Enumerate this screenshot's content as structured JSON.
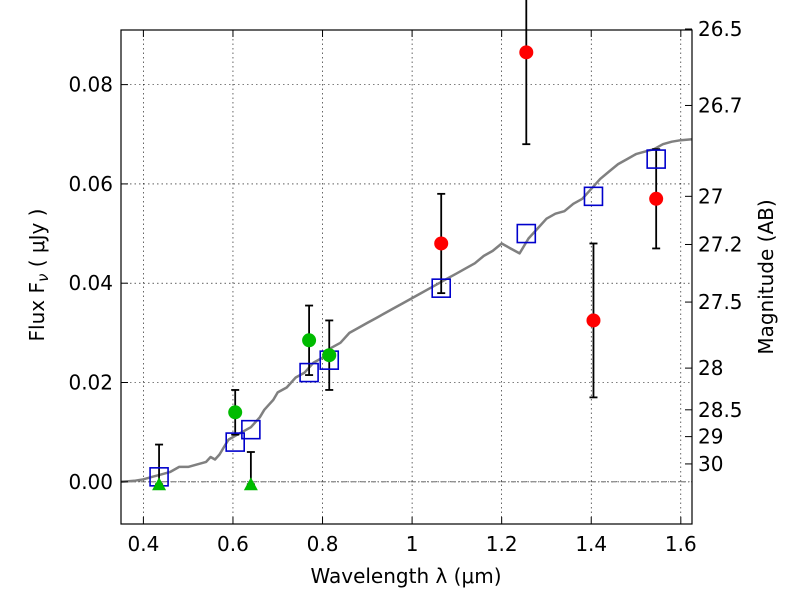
{
  "chart_data": {
    "type": "scatter",
    "xlabel": "Wavelength  λ (μm)",
    "ylabel": "Flux  F",
    "ylabel_sub": "ν",
    "ylabel_units": " ( μJy )",
    "y2label": "Magnitude (AB)",
    "xlim": [
      0.35,
      1.625
    ],
    "ylim": [
      -0.0085,
      0.091
    ],
    "xticks": [
      0.4,
      0.6,
      0.8,
      1.0,
      1.2,
      1.4,
      1.6
    ],
    "xtick_labels": [
      "0.4",
      "0.6",
      "0.8",
      "1",
      "1.2",
      "1.4",
      "1.6"
    ],
    "yticks": [
      0.0,
      0.02,
      0.04,
      0.06,
      0.08
    ],
    "ytick_labels": [
      "0.00",
      "0.02",
      "0.04",
      "0.06",
      "0.08"
    ],
    "y2ticks": [
      {
        "label": "26.5",
        "flux": 0.0912
      },
      {
        "label": "26.7",
        "flux": 0.0758
      },
      {
        "label": "27",
        "flux": 0.0575
      },
      {
        "label": "27.2",
        "flux": 0.0478
      },
      {
        "label": "27.5",
        "flux": 0.0362
      },
      {
        "label": "28",
        "flux": 0.0229
      },
      {
        "label": "28.5",
        "flux": 0.0145
      },
      {
        "label": "29",
        "flux": 0.0091
      },
      {
        "label": "30",
        "flux": 0.0036
      }
    ],
    "grid": true,
    "colors": {
      "model": "#808080",
      "red": "#ff0000",
      "green": "#00bb00",
      "blue": "#0000cc",
      "errorbar": "#000000"
    },
    "model_curve": {
      "x": [
        0.35,
        0.38,
        0.4,
        0.42,
        0.44,
        0.46,
        0.48,
        0.5,
        0.52,
        0.54,
        0.55,
        0.56,
        0.57,
        0.58,
        0.59,
        0.6,
        0.61,
        0.62,
        0.63,
        0.64,
        0.65,
        0.66,
        0.67,
        0.68,
        0.69,
        0.7,
        0.72,
        0.74,
        0.76,
        0.78,
        0.8,
        0.82,
        0.84,
        0.86,
        0.88,
        0.9,
        0.92,
        0.94,
        0.96,
        0.98,
        1.0,
        1.02,
        1.04,
        1.06,
        1.08,
        1.1,
        1.12,
        1.14,
        1.16,
        1.18,
        1.2,
        1.22,
        1.24,
        1.26,
        1.28,
        1.3,
        1.32,
        1.34,
        1.36,
        1.38,
        1.4,
        1.42,
        1.44,
        1.46,
        1.48,
        1.5,
        1.52,
        1.54,
        1.56,
        1.58,
        1.6,
        1.625
      ],
      "y": [
        0.0,
        0.0002,
        0.0005,
        0.001,
        0.0015,
        0.002,
        0.003,
        0.003,
        0.0035,
        0.004,
        0.005,
        0.0045,
        0.0055,
        0.007,
        0.0085,
        0.009,
        0.0095,
        0.01,
        0.0105,
        0.011,
        0.012,
        0.013,
        0.0145,
        0.0155,
        0.0165,
        0.018,
        0.019,
        0.021,
        0.022,
        0.024,
        0.025,
        0.027,
        0.028,
        0.03,
        0.031,
        0.032,
        0.033,
        0.034,
        0.035,
        0.036,
        0.037,
        0.038,
        0.039,
        0.04,
        0.041,
        0.042,
        0.043,
        0.044,
        0.0455,
        0.0465,
        0.048,
        0.047,
        0.046,
        0.049,
        0.051,
        0.053,
        0.054,
        0.0545,
        0.056,
        0.057,
        0.059,
        0.061,
        0.0625,
        0.064,
        0.065,
        0.066,
        0.0665,
        0.067,
        0.068,
        0.0685,
        0.0688,
        0.069
      ]
    },
    "model_points": {
      "x": [
        0.435,
        0.605,
        0.64,
        0.77,
        0.815,
        1.065,
        1.255,
        1.405,
        1.545
      ],
      "y": [
        0.001,
        0.008,
        0.0105,
        0.022,
        0.0245,
        0.039,
        0.05,
        0.0575,
        0.065
      ]
    },
    "red_points": {
      "x": [
        1.065,
        1.255,
        1.405,
        1.545
      ],
      "y": [
        0.048,
        0.0865,
        0.0325,
        0.057
      ],
      "err": [
        0.01,
        0.0185,
        0.0155,
        0.01
      ]
    },
    "green_points": {
      "x": [
        0.605,
        0.77,
        0.815
      ],
      "y": [
        0.014,
        0.0285,
        0.0255
      ],
      "err": [
        0.0045,
        0.007,
        0.007
      ]
    },
    "green_upper_limits": {
      "x": [
        0.435,
        0.64
      ],
      "y": [
        -0.0005,
        -0.0005
      ],
      "err_top": [
        0.0075,
        0.006
      ]
    }
  }
}
